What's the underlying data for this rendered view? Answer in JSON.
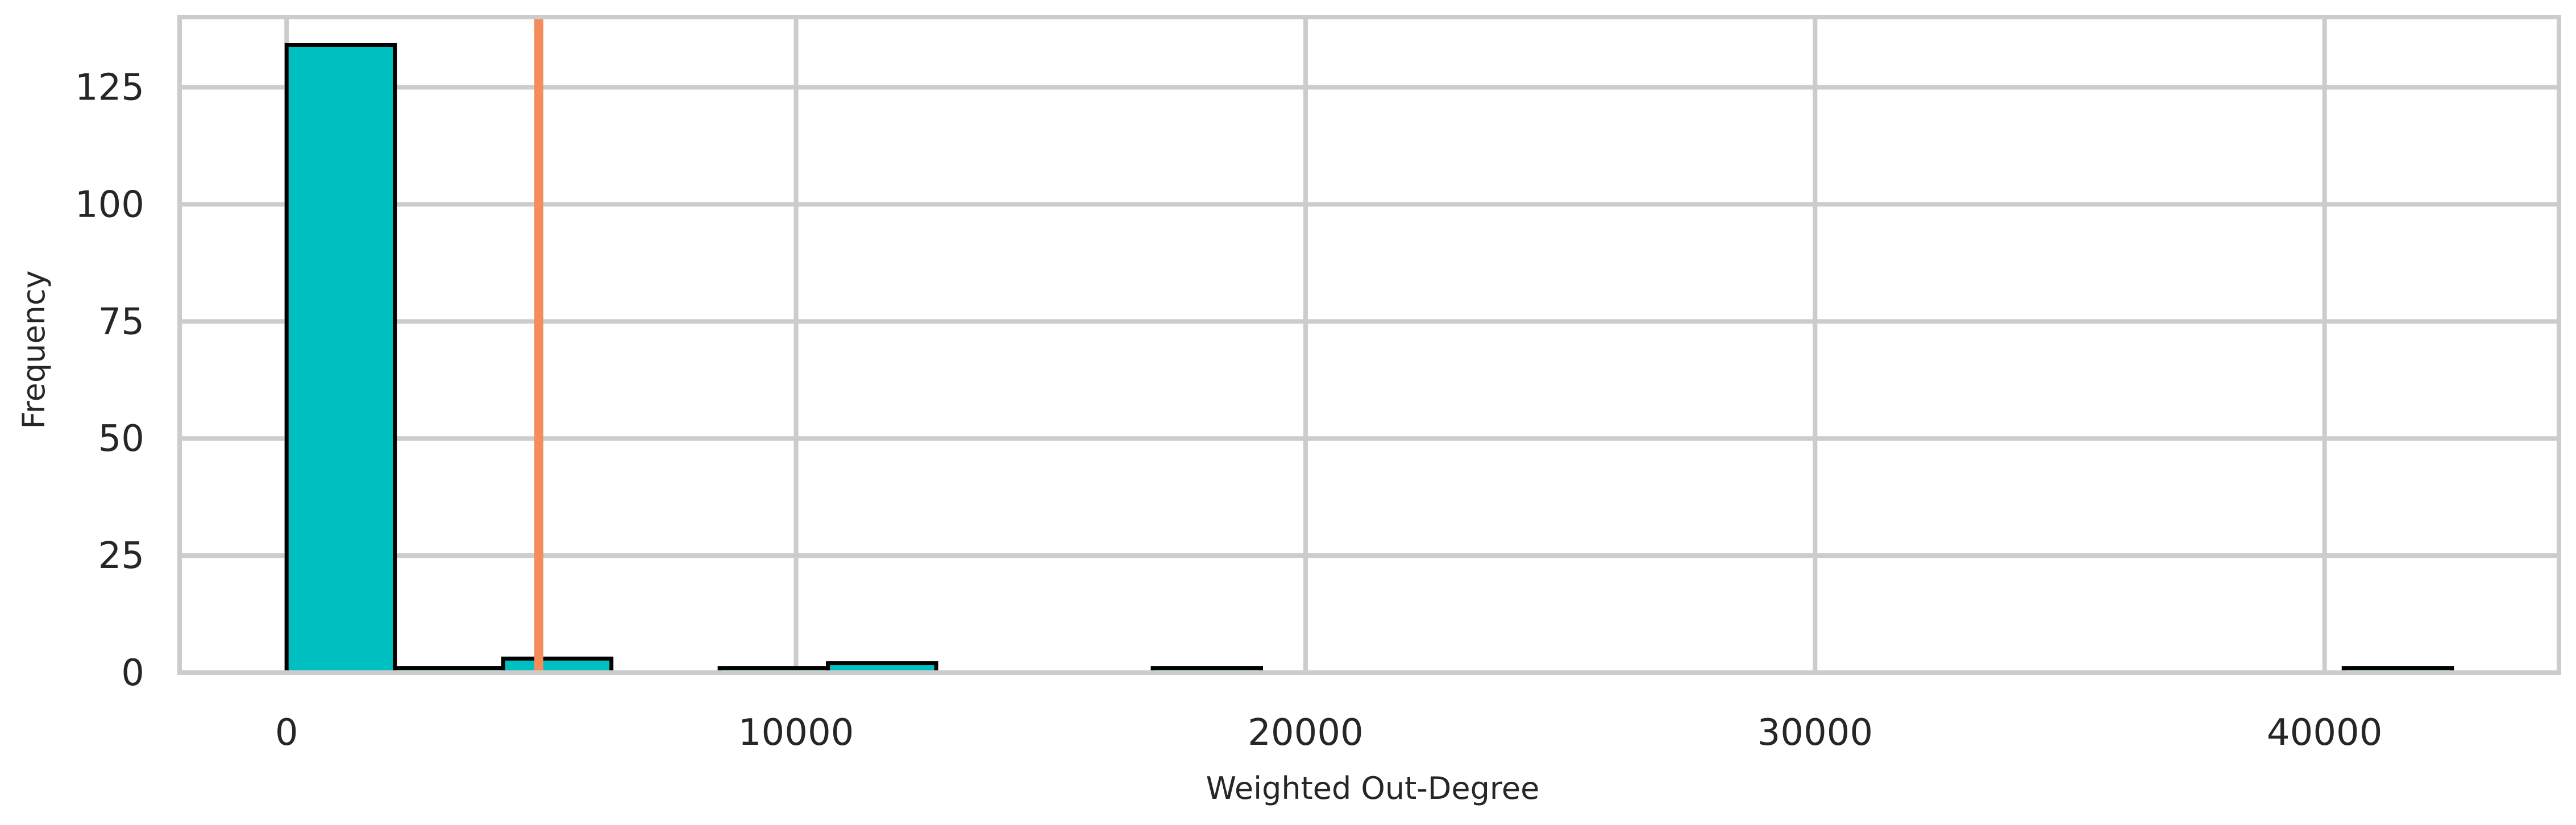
{
  "chart_data": {
    "type": "histogram",
    "title": "",
    "xlabel": "Weighted Out-Degree",
    "ylabel": "Frequency",
    "xlim": [
      -2100,
      44600
    ],
    "ylim": [
      0,
      140
    ],
    "xticks": [
      0,
      10000,
      20000,
      30000,
      40000
    ],
    "yticks": [
      0,
      25,
      50,
      75,
      100,
      125
    ],
    "grid": true,
    "bins": [
      {
        "x0": 0,
        "x1": 2125,
        "count": 134
      },
      {
        "x0": 2125,
        "x1": 4250,
        "count": 1
      },
      {
        "x0": 4250,
        "x1": 6375,
        "count": 3
      },
      {
        "x0": 6375,
        "x1": 8500,
        "count": 0
      },
      {
        "x0": 8500,
        "x1": 10625,
        "count": 1
      },
      {
        "x0": 10625,
        "x1": 12750,
        "count": 2
      },
      {
        "x0": 12750,
        "x1": 14875,
        "count": 0
      },
      {
        "x0": 14875,
        "x1": 17000,
        "count": 0
      },
      {
        "x0": 17000,
        "x1": 19125,
        "count": 1
      },
      {
        "x0": 19125,
        "x1": 21250,
        "count": 0
      },
      {
        "x0": 21250,
        "x1": 23375,
        "count": 0
      },
      {
        "x0": 23375,
        "x1": 25500,
        "count": 0
      },
      {
        "x0": 25500,
        "x1": 27625,
        "count": 0
      },
      {
        "x0": 27625,
        "x1": 29750,
        "count": 0
      },
      {
        "x0": 29750,
        "x1": 31875,
        "count": 0
      },
      {
        "x0": 31875,
        "x1": 34000,
        "count": 0
      },
      {
        "x0": 34000,
        "x1": 36125,
        "count": 0
      },
      {
        "x0": 36125,
        "x1": 38250,
        "count": 0
      },
      {
        "x0": 38250,
        "x1": 40375,
        "count": 0
      },
      {
        "x0": 40375,
        "x1": 42500,
        "count": 1
      }
    ],
    "reference_line": {
      "x": 4950
    },
    "colors": {
      "bar_fill": "#00BFC0",
      "bar_edge": "#000000",
      "reference_line": "#F58C5C",
      "grid": "#CCCCCC",
      "frame": "#CCCCCC",
      "text": "#262626"
    }
  }
}
